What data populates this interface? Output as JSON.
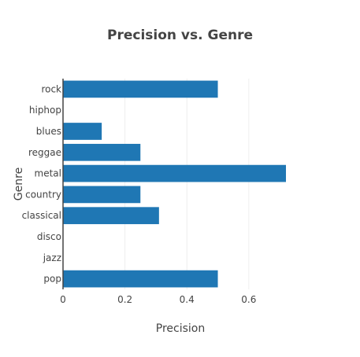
{
  "chart_data": {
    "type": "bar",
    "orientation": "horizontal",
    "title": "Precision vs. Genre",
    "xlabel": "Precision",
    "ylabel": "Genre",
    "categories": [
      "rock",
      "hiphop",
      "blues",
      "reggae",
      "metal",
      "country",
      "classical",
      "disco",
      "jazz",
      "pop"
    ],
    "values": [
      0.5,
      0,
      0.125,
      0.25,
      0.72,
      0.25,
      0.31,
      0,
      0,
      0.5
    ],
    "xlim": [
      0,
      0.72
    ],
    "xticks": [
      0,
      0.2,
      0.4,
      0.6
    ],
    "xtick_labels": [
      "0",
      "0.2",
      "0.4",
      "0.6"
    ],
    "grid": true,
    "bar_color": "#1f77b4",
    "grid_color": "#eeeeee",
    "text_color": "#444444"
  }
}
